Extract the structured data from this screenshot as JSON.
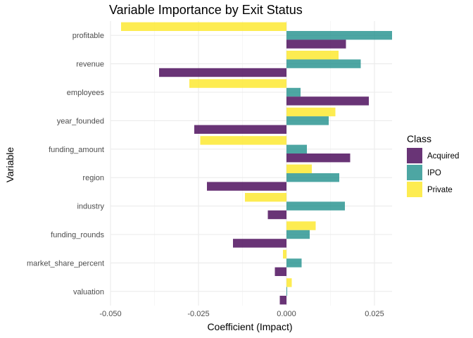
{
  "chart_data": {
    "type": "bar",
    "orientation": "horizontal",
    "title": "Variable Importance by Exit Status",
    "xlabel": "Coefficient (Impact)",
    "ylabel": "Variable",
    "xlim": [
      -0.05,
      0.03
    ],
    "x_ticks": [
      -0.05,
      -0.025,
      0.0,
      0.025
    ],
    "x_tick_labels": [
      "-0.050",
      "-0.025",
      "0.000",
      "0.025"
    ],
    "grid": true,
    "legend": {
      "title": "Class",
      "position": "right"
    },
    "categories": [
      "profitable",
      "revenue",
      "employees",
      "year_founded",
      "funding_amount",
      "region",
      "industry",
      "funding_rounds",
      "market_share_percent",
      "valuation"
    ],
    "series": [
      {
        "name": "Private",
        "color": "#FDE725",
        "values": [
          -0.047,
          0.0148,
          -0.0276,
          0.0139,
          -0.0245,
          0.0072,
          -0.0118,
          0.0083,
          -0.001,
          0.0015
        ]
      },
      {
        "name": "IPO",
        "color": "#21908C",
        "values": [
          0.03,
          0.0211,
          0.004,
          0.012,
          0.0058,
          0.015,
          0.0166,
          0.0066,
          0.0043,
          0.0002
        ]
      },
      {
        "name": "Acquired",
        "color": "#440154",
        "values": [
          0.0169,
          -0.0362,
          0.0234,
          -0.0262,
          0.0181,
          -0.0226,
          -0.0053,
          -0.0152,
          -0.0033,
          -0.0019
        ]
      }
    ],
    "legend_order": [
      "Acquired",
      "IPO",
      "Private"
    ]
  }
}
